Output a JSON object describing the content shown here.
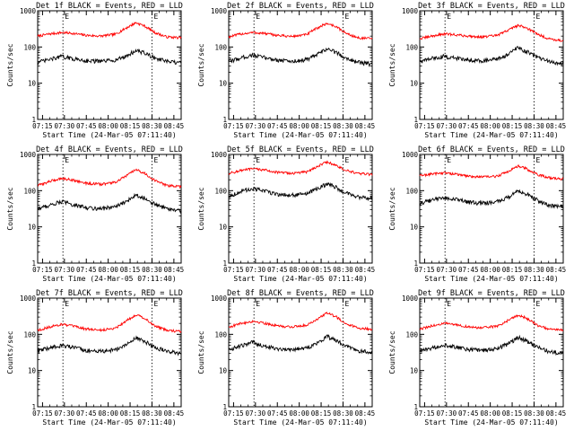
{
  "chart_data": [
    {
      "type": "line",
      "title": "Det 1f BLACK = Events, RED = LLD",
      "xlabel": "Start Time (24-Mar-05 07:11:40)",
      "ylabel": "Counts/sec",
      "xticks": [
        "07:15",
        "07:30",
        "07:45",
        "08:00",
        "08:15",
        "08:30",
        "08:45"
      ],
      "yticks": [
        "1",
        "10",
        "100",
        "1000"
      ],
      "ylim": [
        1,
        1000
      ],
      "ylog": true,
      "markers": {
        "vlines": [
          "07:29",
          "08:30"
        ],
        "labels": [
          "E",
          "E"
        ]
      },
      "series": [
        {
          "color": "#ff0000",
          "x": [
            "07:12",
            "07:20",
            "07:28",
            "07:35",
            "07:45",
            "07:55",
            "08:05",
            "08:12",
            "08:19",
            "08:25",
            "08:32",
            "08:40",
            "08:49"
          ],
          "y": [
            200,
            230,
            250,
            240,
            210,
            200,
            225,
            330,
            470,
            380,
            250,
            190,
            180
          ]
        },
        {
          "color": "#000000",
          "x": [
            "07:12",
            "07:20",
            "07:28",
            "07:35",
            "07:45",
            "07:55",
            "08:05",
            "08:12",
            "08:19",
            "08:25",
            "08:32",
            "08:40",
            "08:49"
          ],
          "y": [
            38,
            45,
            55,
            48,
            42,
            40,
            44,
            55,
            80,
            68,
            50,
            40,
            36
          ]
        }
      ]
    },
    {
      "type": "line",
      "title": "Det 2f BLACK = Events, RED = LLD",
      "xlabel": "Start Time (24-Mar-05 07:11:40)",
      "ylabel": "Counts/sec",
      "xticks": [
        "07:15",
        "07:30",
        "07:45",
        "08:00",
        "08:15",
        "08:30",
        "08:45"
      ],
      "yticks": [
        "1",
        "10",
        "100",
        "1000"
      ],
      "ylim": [
        1,
        1000
      ],
      "ylog": true,
      "markers": {
        "vlines": [
          "07:29",
          "08:30"
        ],
        "labels": [
          "E",
          "E"
        ]
      },
      "series": [
        {
          "color": "#ff0000",
          "x": [
            "07:12",
            "07:20",
            "07:28",
            "07:35",
            "07:45",
            "07:55",
            "08:05",
            "08:12",
            "08:19",
            "08:25",
            "08:32",
            "08:40",
            "08:49"
          ],
          "y": [
            190,
            230,
            250,
            240,
            210,
            195,
            220,
            330,
            450,
            370,
            240,
            180,
            170
          ]
        },
        {
          "color": "#000000",
          "x": [
            "07:12",
            "07:20",
            "07:28",
            "07:35",
            "07:45",
            "07:55",
            "08:05",
            "08:12",
            "08:19",
            "08:25",
            "08:32",
            "08:40",
            "08:49"
          ],
          "y": [
            40,
            50,
            60,
            52,
            44,
            40,
            45,
            60,
            90,
            72,
            50,
            38,
            34
          ]
        }
      ]
    },
    {
      "type": "line",
      "title": "Det 3f BLACK = Events, RED = LLD",
      "xlabel": "Start Time (24-Mar-05 07:11:40)",
      "ylabel": "Counts/sec",
      "xticks": [
        "07:15",
        "07:30",
        "07:45",
        "08:00",
        "08:15",
        "08:30",
        "08:45"
      ],
      "yticks": [
        "1",
        "10",
        "100",
        "1000"
      ],
      "ylim": [
        1,
        1000
      ],
      "ylog": true,
      "markers": {
        "vlines": [
          "07:29",
          "08:30"
        ],
        "labels": [
          "E",
          "E"
        ]
      },
      "series": [
        {
          "color": "#ff0000",
          "x": [
            "07:12",
            "07:20",
            "07:28",
            "07:35",
            "07:45",
            "07:55",
            "08:05",
            "08:12",
            "08:19",
            "08:25",
            "08:32",
            "08:40",
            "08:49"
          ],
          "y": [
            170,
            200,
            230,
            220,
            200,
            190,
            210,
            290,
            400,
            340,
            230,
            170,
            150
          ]
        },
        {
          "color": "#000000",
          "x": [
            "07:12",
            "07:20",
            "07:28",
            "07:35",
            "07:45",
            "07:55",
            "08:05",
            "08:12",
            "08:19",
            "08:25",
            "08:32",
            "08:40",
            "08:49"
          ],
          "y": [
            40,
            48,
            55,
            50,
            45,
            42,
            46,
            62,
            95,
            75,
            52,
            40,
            34
          ]
        }
      ]
    },
    {
      "type": "line",
      "title": "Det 4f BLACK = Events, RED = LLD",
      "xlabel": "Start Time (24-Mar-05 07:11:40)",
      "ylabel": "Counts/sec",
      "xticks": [
        "07:15",
        "07:30",
        "07:45",
        "08:00",
        "08:15",
        "08:30",
        "08:45"
      ],
      "yticks": [
        "1",
        "10",
        "100",
        "1000"
      ],
      "ylim": [
        1,
        1000
      ],
      "ylog": true,
      "markers": {
        "vlines": [
          "07:29",
          "08:30"
        ],
        "labels": [
          "E",
          "E"
        ]
      },
      "series": [
        {
          "color": "#ff0000",
          "x": [
            "07:12",
            "07:20",
            "07:28",
            "07:35",
            "07:45",
            "07:55",
            "08:05",
            "08:12",
            "08:19",
            "08:25",
            "08:32",
            "08:40",
            "08:49"
          ],
          "y": [
            140,
            180,
            220,
            200,
            160,
            150,
            170,
            250,
            380,
            300,
            190,
            140,
            130
          ]
        },
        {
          "color": "#000000",
          "x": [
            "07:12",
            "07:20",
            "07:28",
            "07:35",
            "07:45",
            "07:55",
            "08:05",
            "08:12",
            "08:19",
            "08:25",
            "08:32",
            "08:40",
            "08:49"
          ],
          "y": [
            32,
            40,
            50,
            42,
            34,
            32,
            36,
            48,
            78,
            62,
            42,
            32,
            28
          ]
        }
      ]
    },
    {
      "type": "line",
      "title": "Det 5f BLACK = Events, RED = LLD",
      "xlabel": "Start Time (24-Mar-05 07:11:40)",
      "ylabel": "Counts/sec",
      "xticks": [
        "07:15",
        "07:30",
        "07:45",
        "08:00",
        "08:15",
        "08:30",
        "08:45"
      ],
      "yticks": [
        "1",
        "10",
        "100",
        "1000"
      ],
      "ylim": [
        1,
        1000
      ],
      "ylog": true,
      "markers": {
        "vlines": [
          "07:29",
          "08:30"
        ],
        "labels": [
          "E",
          "E"
        ]
      },
      "series": [
        {
          "color": "#ff0000",
          "x": [
            "07:12",
            "07:20",
            "07:28",
            "07:35",
            "07:45",
            "07:55",
            "08:05",
            "08:12",
            "08:19",
            "08:25",
            "08:32",
            "08:40",
            "08:49"
          ],
          "y": [
            300,
            360,
            400,
            380,
            320,
            300,
            330,
            460,
            620,
            500,
            360,
            300,
            280
          ]
        },
        {
          "color": "#000000",
          "x": [
            "07:12",
            "07:20",
            "07:28",
            "07:35",
            "07:45",
            "07:55",
            "08:05",
            "08:12",
            "08:19",
            "08:25",
            "08:32",
            "08:40",
            "08:49"
          ],
          "y": [
            70,
            95,
            115,
            100,
            80,
            75,
            82,
            110,
            155,
            125,
            85,
            68,
            62
          ]
        }
      ]
    },
    {
      "type": "line",
      "title": "Det 6f BLACK = Events, RED = LLD",
      "xlabel": "Start Time (24-Mar-05 07:11:40)",
      "ylabel": "Counts/sec",
      "xticks": [
        "07:15",
        "07:30",
        "07:45",
        "08:00",
        "08:15",
        "08:30",
        "08:45"
      ],
      "yticks": [
        "1",
        "10",
        "100",
        "1000"
      ],
      "ylim": [
        1,
        1000
      ],
      "ylog": true,
      "markers": {
        "vlines": [
          "07:29",
          "08:30"
        ],
        "labels": [
          "E",
          "E"
        ]
      },
      "series": [
        {
          "color": "#ff0000",
          "x": [
            "07:12",
            "07:20",
            "07:28",
            "07:35",
            "07:45",
            "07:55",
            "08:05",
            "08:12",
            "08:19",
            "08:25",
            "08:32",
            "08:40",
            "08:49"
          ],
          "y": [
            260,
            290,
            310,
            290,
            250,
            240,
            250,
            340,
            480,
            400,
            280,
            230,
            210
          ]
        },
        {
          "color": "#000000",
          "x": [
            "07:12",
            "07:20",
            "07:28",
            "07:35",
            "07:45",
            "07:55",
            "08:05",
            "08:12",
            "08:19",
            "08:25",
            "08:32",
            "08:40",
            "08:49"
          ],
          "y": [
            45,
            55,
            65,
            58,
            48,
            45,
            50,
            65,
            95,
            80,
            55,
            40,
            36
          ]
        }
      ]
    },
    {
      "type": "line",
      "title": "Det 7f BLACK = Events, RED = LLD",
      "xlabel": "Start Time (24-Mar-05 07:11:40)",
      "ylabel": "Counts/sec",
      "xticks": [
        "07:15",
        "07:30",
        "07:45",
        "08:00",
        "08:15",
        "08:30",
        "08:45"
      ],
      "yticks": [
        "1",
        "10",
        "100",
        "1000"
      ],
      "ylim": [
        1,
        1000
      ],
      "ylog": true,
      "markers": {
        "vlines": [
          "07:29",
          "08:30"
        ],
        "labels": [
          "E",
          "E"
        ]
      },
      "series": [
        {
          "color": "#ff0000",
          "x": [
            "07:12",
            "07:20",
            "07:28",
            "07:35",
            "07:45",
            "07:55",
            "08:05",
            "08:12",
            "08:19",
            "08:25",
            "08:32",
            "08:40",
            "08:49"
          ],
          "y": [
            130,
            160,
            190,
            170,
            140,
            130,
            150,
            230,
            350,
            280,
            170,
            130,
            120
          ]
        },
        {
          "color": "#000000",
          "x": [
            "07:12",
            "07:20",
            "07:28",
            "07:35",
            "07:45",
            "07:55",
            "08:05",
            "08:12",
            "08:19",
            "08:25",
            "08:32",
            "08:40",
            "08:49"
          ],
          "y": [
            35,
            42,
            50,
            44,
            36,
            34,
            38,
            50,
            80,
            64,
            44,
            34,
            30
          ]
        }
      ]
    },
    {
      "type": "line",
      "title": "Det 8f BLACK = Events, RED = LLD",
      "xlabel": "Start Time (24-Mar-05 07:11:40)",
      "ylabel": "Counts/sec",
      "xticks": [
        "07:15",
        "07:30",
        "07:45",
        "08:00",
        "08:15",
        "08:30",
        "08:45"
      ],
      "yticks": [
        "1",
        "10",
        "100",
        "1000"
      ],
      "ylim": [
        1,
        1000
      ],
      "ylog": true,
      "markers": {
        "vlines": [
          "07:29",
          "08:30"
        ],
        "labels": [
          "E",
          "E"
        ]
      },
      "series": [
        {
          "color": "#ff0000",
          "x": [
            "07:12",
            "07:20",
            "07:28",
            "07:35",
            "07:45",
            "07:55",
            "08:05",
            "08:12",
            "08:19",
            "08:25",
            "08:32",
            "08:40",
            "08:49"
          ],
          "y": [
            160,
            200,
            230,
            210,
            170,
            160,
            180,
            260,
            390,
            310,
            200,
            150,
            140
          ]
        },
        {
          "color": "#000000",
          "x": [
            "07:12",
            "07:20",
            "07:28",
            "07:35",
            "07:45",
            "07:55",
            "08:05",
            "08:12",
            "08:19",
            "08:25",
            "08:32",
            "08:40",
            "08:49"
          ],
          "y": [
            38,
            48,
            60,
            50,
            40,
            38,
            42,
            56,
            88,
            70,
            48,
            36,
            32
          ]
        }
      ]
    },
    {
      "type": "line",
      "title": "Det 9f BLACK = Events, RED = LLD",
      "xlabel": "Start Time (24-Mar-05 07:11:40)",
      "ylabel": "Counts/sec",
      "xticks": [
        "07:15",
        "07:30",
        "07:45",
        "08:00",
        "08:15",
        "08:30",
        "08:45"
      ],
      "yticks": [
        "1",
        "10",
        "100",
        "1000"
      ],
      "ylim": [
        1,
        1000
      ],
      "ylog": true,
      "markers": {
        "vlines": [
          "07:29",
          "08:30"
        ],
        "labels": [
          "E",
          "E"
        ]
      },
      "series": [
        {
          "color": "#ff0000",
          "x": [
            "07:12",
            "07:20",
            "07:28",
            "07:35",
            "07:45",
            "07:55",
            "08:05",
            "08:12",
            "08:19",
            "08:25",
            "08:32",
            "08:40",
            "08:49"
          ],
          "y": [
            140,
            170,
            200,
            190,
            160,
            150,
            170,
            240,
            340,
            280,
            180,
            140,
            130
          ]
        },
        {
          "color": "#000000",
          "x": [
            "07:12",
            "07:20",
            "07:28",
            "07:35",
            "07:45",
            "07:55",
            "08:05",
            "08:12",
            "08:19",
            "08:25",
            "08:32",
            "08:40",
            "08:49"
          ],
          "y": [
            34,
            42,
            52,
            46,
            38,
            36,
            40,
            54,
            82,
            66,
            44,
            34,
            30
          ]
        }
      ]
    }
  ]
}
